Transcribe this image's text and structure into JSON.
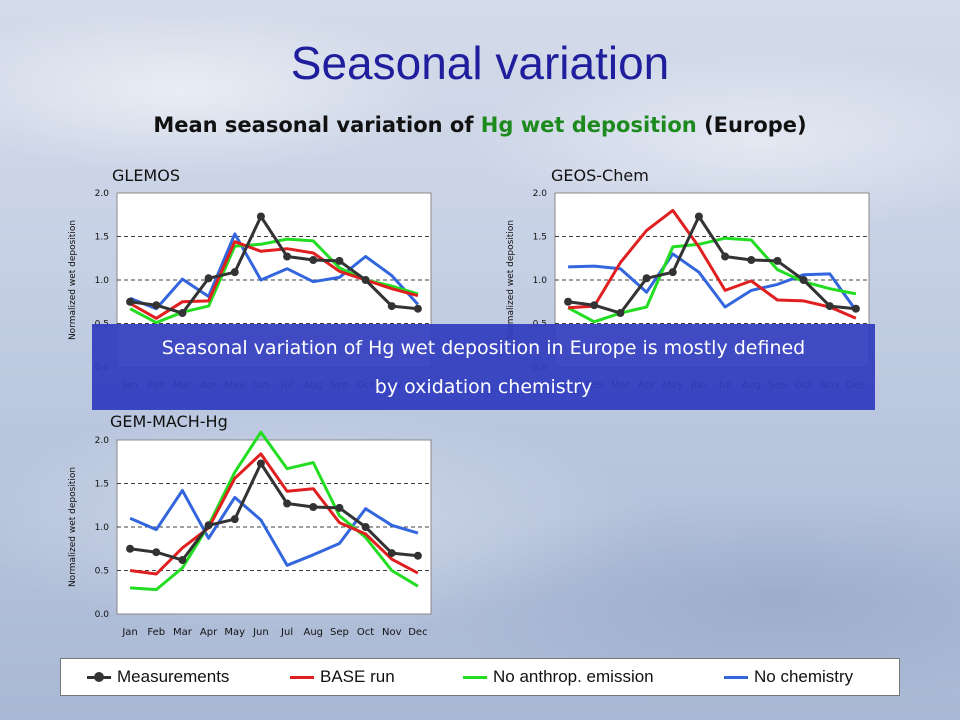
{
  "slide": {
    "title": "Seasonal variation",
    "subtitle_pre": "Mean seasonal variation of ",
    "subtitle_hl": "Hg wet deposition",
    "subtitle_post": " (Europe)"
  },
  "banner": {
    "line1": "Seasonal variation of Hg wet deposition in Europe is mostly defined",
    "line2": "by oxidation chemistry"
  },
  "legend": [
    {
      "label": "Measurements",
      "color": "#333333",
      "marker": true
    },
    {
      "label": "BASE run",
      "color": "#e02020",
      "marker": false
    },
    {
      "label": "No anthrop. emission",
      "color": "#22dd22",
      "marker": false
    },
    {
      "label": "No chemistry",
      "color": "#3366dd",
      "marker": false
    }
  ],
  "chart_data": [
    {
      "type": "line",
      "title": "GLEMOS",
      "ylabel": "Normalized wet deposition",
      "ylim": [
        0,
        2.0
      ],
      "yticks": [
        "0.0",
        "0.5",
        "1.0",
        "1.5",
        "2.0"
      ],
      "categories": [
        "Jan",
        "Feb",
        "Mar",
        "Apr",
        "May",
        "Jun",
        "Jul",
        "Aug",
        "Sep",
        "Oct",
        "Nov",
        "Dec"
      ],
      "series": [
        {
          "name": "Measurements",
          "color": "#333333",
          "marker": true,
          "values": [
            0.75,
            0.71,
            0.62,
            1.02,
            1.09,
            1.73,
            1.27,
            1.23,
            1.22,
            1.0,
            0.7,
            0.67
          ]
        },
        {
          "name": "BASE run",
          "color": "#e02020",
          "marker": false,
          "values": [
            0.73,
            0.56,
            0.75,
            0.76,
            1.44,
            1.33,
            1.36,
            1.31,
            1.1,
            1.0,
            0.9,
            0.82
          ]
        },
        {
          "name": "No anthrop. emission",
          "color": "#22dd22",
          "marker": false,
          "values": [
            0.67,
            0.51,
            0.63,
            0.7,
            1.39,
            1.41,
            1.47,
            1.45,
            1.14,
            1.0,
            0.93,
            0.84
          ]
        },
        {
          "name": "No chemistry",
          "color": "#3366dd",
          "marker": false,
          "values": [
            0.79,
            0.67,
            1.01,
            0.81,
            1.53,
            1.0,
            1.13,
            0.98,
            1.03,
            1.27,
            1.05,
            0.72
          ]
        }
      ]
    },
    {
      "type": "line",
      "title": "GEOS-Chem",
      "ylabel": "Normalized wet deposition",
      "ylim": [
        0,
        2.0
      ],
      "yticks": [
        "0.0",
        "0.5",
        "1.0",
        "1.5",
        "2.0"
      ],
      "categories": [
        "Jan",
        "Feb",
        "Mar",
        "Apr",
        "May",
        "Jun",
        "Jul",
        "Aug",
        "Sep",
        "Oct",
        "Nov",
        "Dec"
      ],
      "series": [
        {
          "name": "Measurements",
          "color": "#333333",
          "marker": true,
          "values": [
            0.75,
            0.71,
            0.62,
            1.02,
            1.09,
            1.73,
            1.27,
            1.23,
            1.22,
            1.0,
            0.7,
            0.67
          ]
        },
        {
          "name": "BASE run",
          "color": "#e02020",
          "marker": false,
          "values": [
            0.68,
            0.7,
            1.2,
            1.57,
            1.8,
            1.38,
            0.88,
            0.99,
            0.77,
            0.76,
            0.69,
            0.56
          ]
        },
        {
          "name": "No anthrop. emission",
          "color": "#22dd22",
          "marker": false,
          "values": [
            0.68,
            0.52,
            0.62,
            0.69,
            1.38,
            1.41,
            1.48,
            1.46,
            1.12,
            0.98,
            0.9,
            0.84
          ]
        },
        {
          "name": "No chemistry",
          "color": "#3366dd",
          "marker": false,
          "values": [
            1.15,
            1.16,
            1.13,
            0.86,
            1.3,
            1.09,
            0.69,
            0.88,
            0.95,
            1.06,
            1.07,
            0.65
          ]
        }
      ]
    },
    {
      "type": "line",
      "title": "GEM-MACH-Hg",
      "ylabel": "Normalized wet deposition",
      "ylim": [
        0,
        2.0
      ],
      "yticks": [
        "0.0",
        "0.5",
        "1.0",
        "1.5",
        "2.0"
      ],
      "categories": [
        "Jan",
        "Feb",
        "Mar",
        "Apr",
        "May",
        "Jun",
        "Jul",
        "Aug",
        "Sep",
        "Oct",
        "Nov",
        "Dec"
      ],
      "series": [
        {
          "name": "Measurements",
          "color": "#333333",
          "marker": true,
          "values": [
            0.75,
            0.71,
            0.62,
            1.02,
            1.09,
            1.73,
            1.27,
            1.23,
            1.22,
            1.0,
            0.7,
            0.67
          ]
        },
        {
          "name": "BASE run",
          "color": "#e02020",
          "marker": false,
          "values": [
            0.5,
            0.46,
            0.76,
            0.99,
            1.56,
            1.84,
            1.41,
            1.44,
            1.05,
            0.92,
            0.63,
            0.47
          ]
        },
        {
          "name": "No anthrop. emission",
          "color": "#22dd22",
          "marker": false,
          "values": [
            0.3,
            0.28,
            0.53,
            1.02,
            1.63,
            2.09,
            1.67,
            1.74,
            1.13,
            0.88,
            0.5,
            0.32
          ]
        },
        {
          "name": "No chemistry",
          "color": "#3366dd",
          "marker": false,
          "values": [
            1.1,
            0.97,
            1.42,
            0.87,
            1.34,
            1.08,
            0.56,
            0.68,
            0.81,
            1.21,
            1.02,
            0.93
          ]
        }
      ]
    }
  ]
}
